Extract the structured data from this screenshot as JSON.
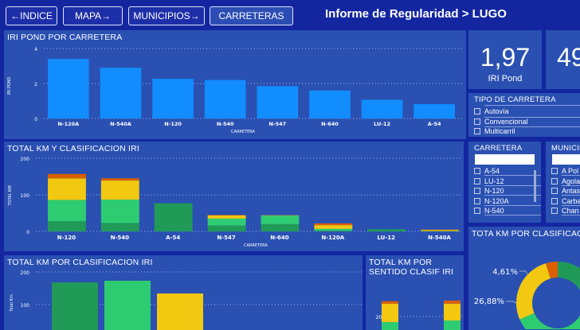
{
  "nav": {
    "indice": "←INDICE",
    "mapa": "MAPA→",
    "municipios": "MUNICIPIOS→",
    "carreteras": "CARRETERAS"
  },
  "header": {
    "title": "Informe de Regularidad > LUGO"
  },
  "colors": {
    "background": "#1326a0",
    "panel": "#2a50b2",
    "bar": "#118dff",
    "dark_green": "#219a58",
    "light_green": "#2ecc71",
    "yellow": "#f2c811",
    "orange": "#d95f02"
  },
  "kpis": [
    {
      "value": "1,97",
      "label": "IRI Pond"
    },
    {
      "value": "49"
    }
  ],
  "tipo_slicer": {
    "title": "TIPO DE CARRETERA",
    "items": [
      "Autovía",
      "Convencional",
      "Multicarril"
    ]
  },
  "carretera_slicer": {
    "title": "CARRETERA",
    "items": [
      "A-54",
      "LU-12",
      "N-120",
      "N-120A",
      "N-540"
    ]
  },
  "municipio_slicer": {
    "title": "MUNICIPIO",
    "items": [
      "A Pol",
      "Agola",
      "Antas",
      "Carba",
      "Chan"
    ]
  },
  "chart_data": [
    {
      "type": "bar",
      "title": "IRI POND POR CARRETERA",
      "xlabel": "CARRETERA",
      "ylabel": "IRI POND",
      "ylim": [
        0,
        4
      ],
      "yticks": [
        0,
        2,
        4
      ],
      "grid": true,
      "categories": [
        "N-120A",
        "N-540A",
        "N-120",
        "N-540",
        "N-547",
        "N-640",
        "LU-12",
        "A-54"
      ],
      "values": [
        3.4,
        2.9,
        2.27,
        2.2,
        1.85,
        1.6,
        1.07,
        0.82
      ]
    },
    {
      "type": "bar",
      "stacked": true,
      "title": "TOTAL KM Y CLASIFICACION IRI",
      "xlabel": "CARRETERA",
      "ylabel": "TOTAL KM",
      "ylim": [
        0,
        200
      ],
      "yticks": [
        0,
        100,
        200
      ],
      "grid": true,
      "categories": [
        "N-120",
        "N-540",
        "A-54",
        "N-547",
        "N-640",
        "N-120A",
        "LU-12",
        "N-540A"
      ],
      "series": [
        {
          "color": "#219a58",
          "values": [
            28,
            23,
            77,
            16,
            20,
            2,
            6,
            1
          ]
        },
        {
          "color": "#2ecc71",
          "values": [
            58,
            64,
            0,
            19,
            23,
            5,
            0,
            0
          ]
        },
        {
          "color": "#f2c811",
          "values": [
            59,
            52,
            0,
            9,
            1,
            10,
            0,
            3
          ]
        },
        {
          "color": "#d95f02",
          "values": [
            12,
            6,
            0,
            1,
            0,
            5,
            0,
            1
          ]
        }
      ]
    },
    {
      "type": "bar",
      "title": "TOTAL KM POR CLASIFICACION IRI",
      "ylabel": "Total Km",
      "yticks": [
        100,
        200
      ],
      "grid": true,
      "values": [
        168,
        173,
        134
      ],
      "colors": [
        "#219a58",
        "#2ecc71",
        "#f2c811"
      ]
    },
    {
      "type": "bar",
      "stacked": true,
      "title": "TOTAL KM POR SENTIDO CLASIF IRI",
      "yticks": [
        200
      ],
      "series": [
        {
          "color": "#219a58",
          "values": [
            110,
            112
          ]
        },
        {
          "color": "#2ecc71",
          "values": [
            72,
            75
          ]
        },
        {
          "color": "#f2c811",
          "values": [
            60,
            55
          ]
        },
        {
          "color": "#d95f02",
          "values": [
            8,
            10
          ]
        }
      ]
    },
    {
      "type": "pie",
      "donut": true,
      "title": "TOTA KM POR CLASIFICACIO",
      "slices": [
        {
          "color": "#219a58",
          "value": 33
        },
        {
          "color": "#2ecc71",
          "value": 35.5
        },
        {
          "color": "#f2c811",
          "value": 26.88,
          "label": "26,88%"
        },
        {
          "color": "#d95f02",
          "value": 4.61,
          "label": "4,61%"
        }
      ]
    }
  ]
}
